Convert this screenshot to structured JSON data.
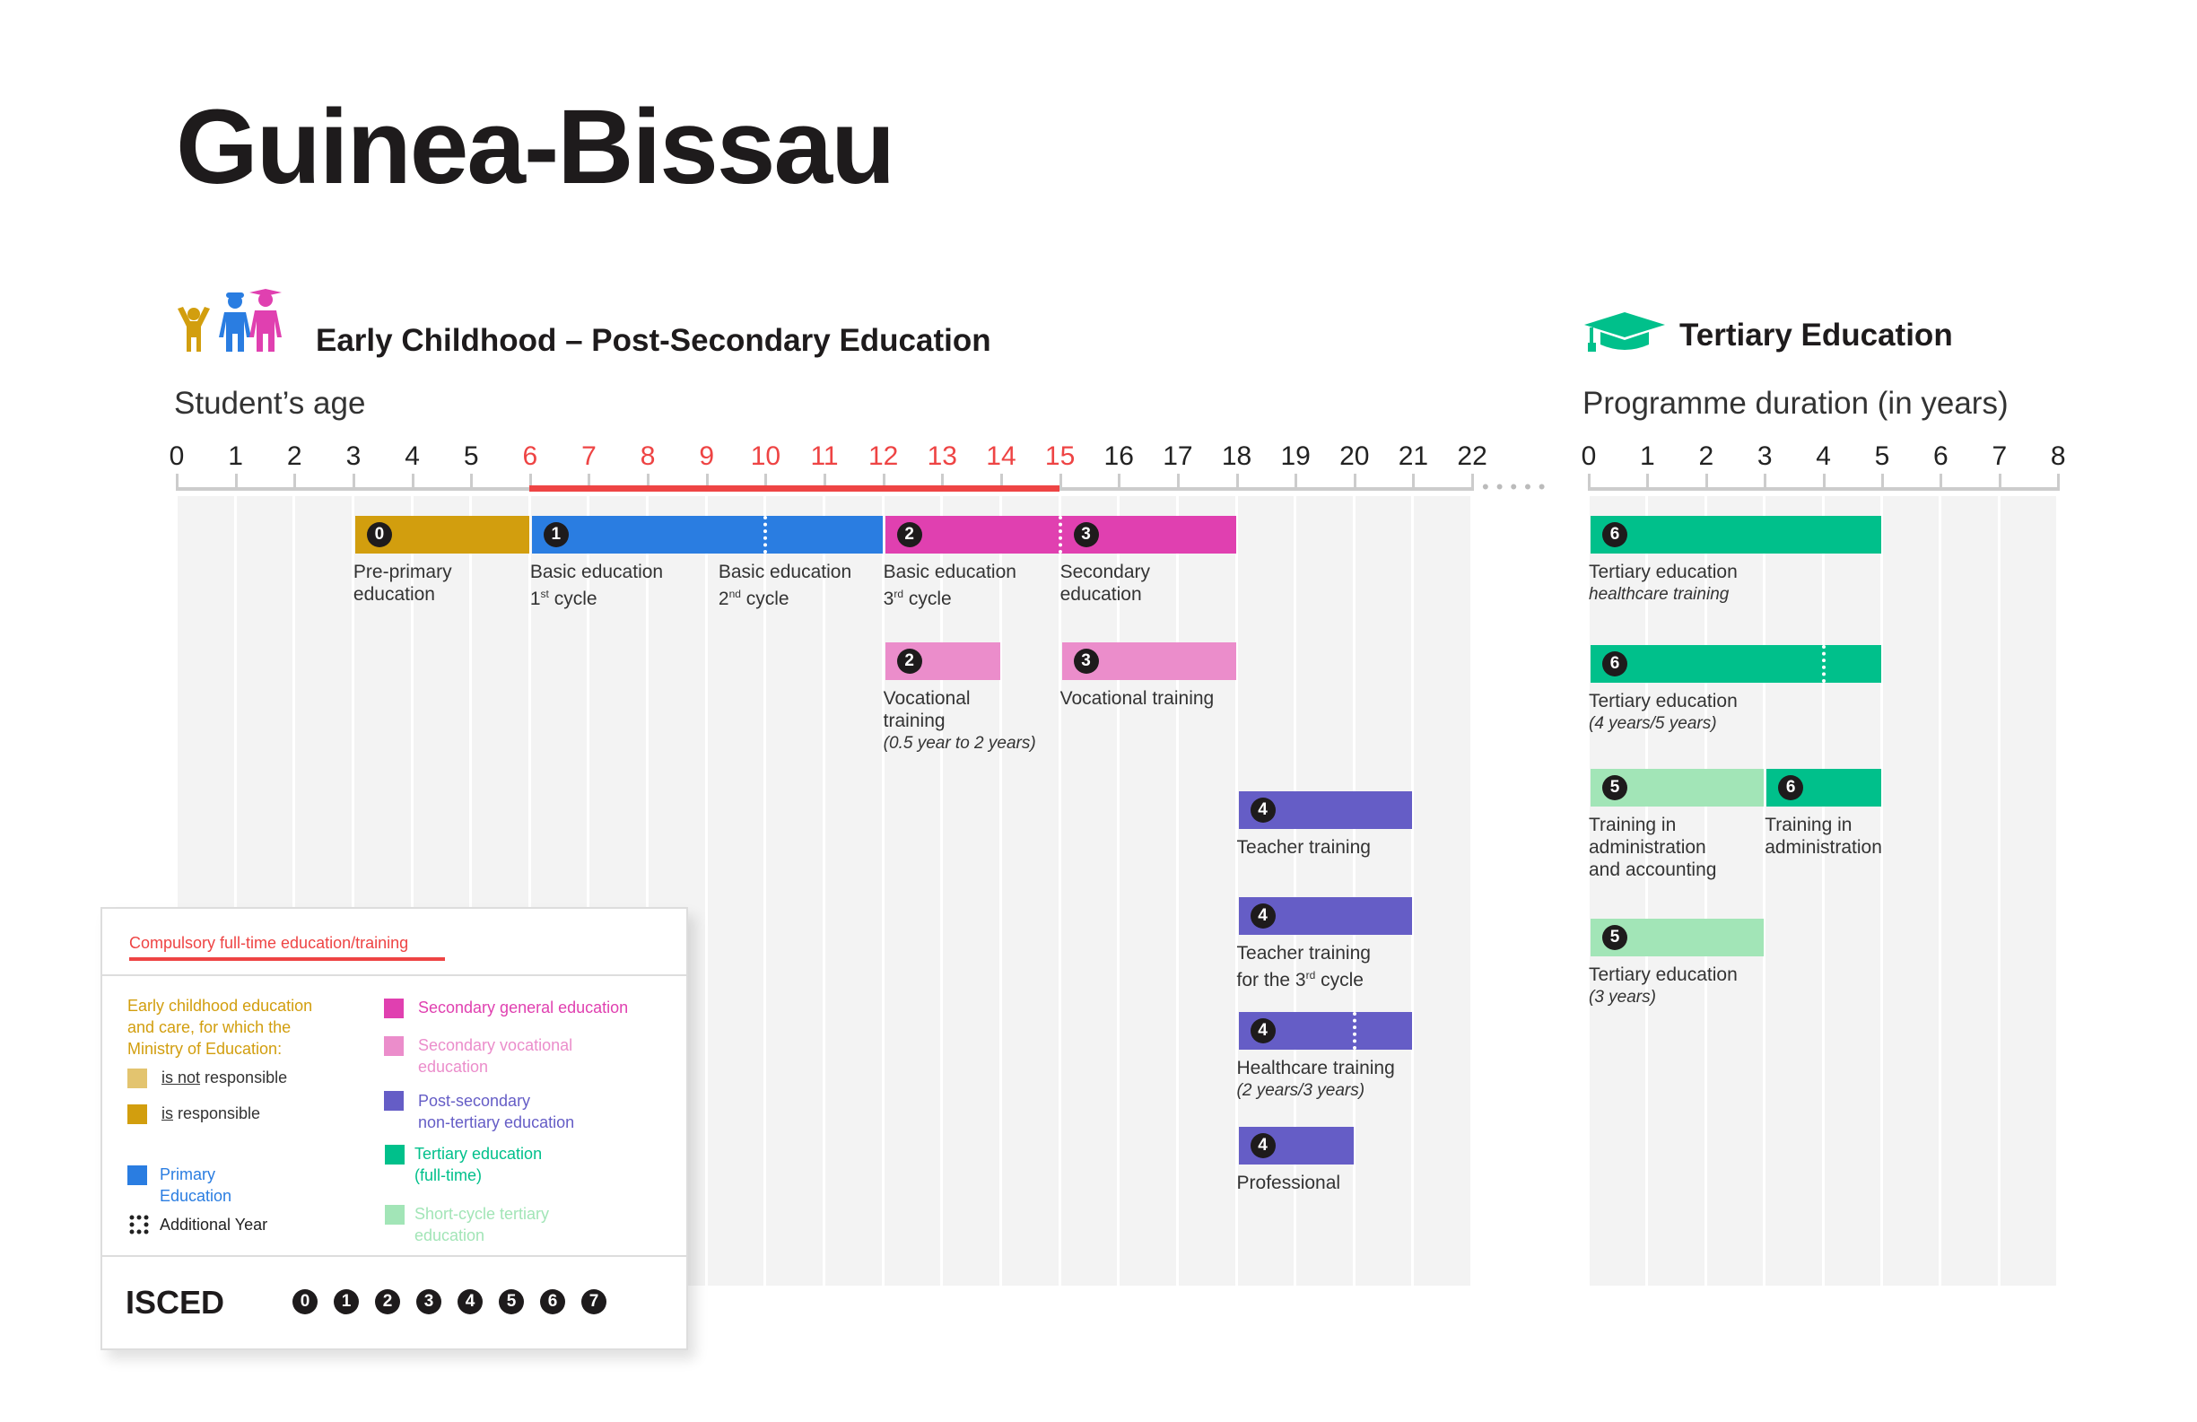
{
  "title": "Guinea-Bissau",
  "sections": {
    "left_title": "Early Childhood – Post-Secondary Education",
    "left_axis_title": "Student’s age",
    "right_title": "Tertiary Education",
    "right_axis_title": "Programme duration (in years)"
  },
  "colors": {
    "preprimary": "#D29E0E",
    "preprimary_not": "#E3C46F",
    "primary": "#2A7DE1",
    "secondary_general": "#E040B0",
    "secondary_vocational": "#EB8DCB",
    "postsecondary": "#655DC6",
    "tertiary": "#00C08B",
    "short_cycle": "#A2E5B7",
    "compulsory": "#EE4444"
  },
  "chart_data": {
    "type": "table",
    "age_axis": {
      "min": 0,
      "max": 22,
      "ticks": [
        "0",
        "1",
        "2",
        "3",
        "4",
        "5",
        "6",
        "7",
        "8",
        "9",
        "10",
        "11",
        "12",
        "13",
        "14",
        "15",
        "16",
        "17",
        "18",
        "19",
        "20",
        "21",
        "22"
      ],
      "compulsory": [
        6,
        15
      ]
    },
    "duration_axis": {
      "min": 0,
      "max": 8,
      "ticks": [
        "0",
        "1",
        "2",
        "3",
        "4",
        "5",
        "6",
        "7",
        "8"
      ]
    },
    "age_bars": [
      {
        "start": 3,
        "end": 6,
        "color": "preprimary",
        "badges": [
          {
            "at": 3,
            "level": "0"
          }
        ],
        "labels": [
          {
            "at": 3,
            "lines": [
              {
                "t": "Pre-primary"
              },
              {
                "t": "education"
              }
            ]
          }
        ]
      },
      {
        "start": 6,
        "end": 12,
        "color": "primary",
        "dotted_at": 10,
        "badges": [
          {
            "at": 6,
            "level": "1"
          }
        ],
        "labels": [
          {
            "at": 6,
            "lines": [
              {
                "t": "Basic education"
              },
              {
                "t": "1",
                "sup": "st",
                "post": " cycle"
              }
            ]
          },
          {
            "at": 9.2,
            "lines": [
              {
                "t": "Basic education"
              },
              {
                "t": "2",
                "sup": "nd",
                "post": " cycle"
              }
            ]
          }
        ]
      },
      {
        "start": 12,
        "end": 18,
        "color": "secondary_general",
        "dotted_at": 15,
        "badges": [
          {
            "at": 12,
            "level": "2"
          },
          {
            "at": 15,
            "level": "3"
          }
        ],
        "labels": [
          {
            "at": 12,
            "lines": [
              {
                "t": "Basic education"
              },
              {
                "t": "3",
                "sup": "rd",
                "post": " cycle"
              }
            ]
          },
          {
            "at": 15,
            "lines": [
              {
                "t": "Secondary"
              },
              {
                "t": "education"
              }
            ]
          }
        ]
      },
      {
        "start": 12,
        "end": 14,
        "color": "secondary_vocational",
        "badges": [
          {
            "at": 12,
            "level": "2"
          }
        ],
        "labels": [
          {
            "at": 12,
            "lines": [
              {
                "t": "Vocational"
              },
              {
                "t": "training"
              },
              {
                "t": "(0.5 year to 2 years)",
                "italic": true
              }
            ]
          }
        ]
      },
      {
        "start": 15,
        "end": 18,
        "color": "secondary_vocational",
        "badges": [
          {
            "at": 15,
            "level": "3"
          }
        ],
        "labels": [
          {
            "at": 15,
            "lines": [
              {
                "t": "Vocational training"
              }
            ]
          }
        ]
      },
      {
        "start": 18,
        "end": 21,
        "color": "postsecondary",
        "badges": [
          {
            "at": 18,
            "level": "4"
          }
        ],
        "labels": [
          {
            "at": 18,
            "lines": [
              {
                "t": "Teacher training"
              }
            ]
          }
        ]
      },
      {
        "start": 18,
        "end": 21,
        "color": "postsecondary",
        "badges": [
          {
            "at": 18,
            "level": "4"
          }
        ],
        "labels": [
          {
            "at": 18,
            "lines": [
              {
                "t": "Teacher training"
              },
              {
                "t": "for the 3",
                "sup": "rd",
                "post": " cycle"
              }
            ]
          }
        ]
      },
      {
        "start": 18,
        "end": 21,
        "color": "postsecondary",
        "dotted_at": 20,
        "badges": [
          {
            "at": 18,
            "level": "4"
          }
        ],
        "labels": [
          {
            "at": 18,
            "lines": [
              {
                "t": "Healthcare training"
              },
              {
                "t": "(2 years/3 years)",
                "italic": true
              }
            ]
          }
        ]
      },
      {
        "start": 18,
        "end": 20,
        "color": "postsecondary",
        "badges": [
          {
            "at": 18,
            "level": "4"
          }
        ],
        "labels": [
          {
            "at": 18,
            "lines": [
              {
                "t": "Professional"
              }
            ]
          }
        ]
      }
    ],
    "duration_bars": [
      {
        "start": 0,
        "end": 5,
        "color": "tertiary",
        "badges": [
          {
            "at": 0,
            "level": "6"
          }
        ],
        "labels": [
          {
            "at": 0,
            "lines": [
              {
                "t": "Tertiary education"
              },
              {
                "t": "healthcare training",
                "italic": true
              }
            ]
          }
        ]
      },
      {
        "start": 0,
        "end": 5,
        "color": "tertiary",
        "dotted_at": 4,
        "badges": [
          {
            "at": 0,
            "level": "6"
          }
        ],
        "labels": [
          {
            "at": 0,
            "lines": [
              {
                "t": "Tertiary education"
              },
              {
                "t": "(4 years/5 years)",
                "italic": true
              }
            ]
          }
        ]
      },
      {
        "start": 0,
        "end": 3,
        "color": "short_cycle",
        "badges": [
          {
            "at": 0,
            "level": "5"
          }
        ],
        "labels": [
          {
            "at": 0,
            "lines": [
              {
                "t": "Training in"
              },
              {
                "t": "administration"
              },
              {
                "t": "and accounting"
              }
            ]
          }
        ]
      },
      {
        "start": 3,
        "end": 5,
        "color": "tertiary",
        "badges": [
          {
            "at": 3,
            "level": "6"
          }
        ],
        "labels": [
          {
            "at": 3,
            "lines": [
              {
                "t": "Training in"
              },
              {
                "t": "administration"
              }
            ]
          }
        ]
      },
      {
        "start": 0,
        "end": 3,
        "color": "short_cycle",
        "badges": [
          {
            "at": 0,
            "level": "5"
          }
        ],
        "labels": [
          {
            "at": 0,
            "lines": [
              {
                "t": "Tertiary education"
              },
              {
                "t": "(3 years)",
                "italic": true
              }
            ]
          }
        ]
      }
    ]
  },
  "legend": {
    "compulsory": "Compulsory full-time education/training",
    "ecec_lines": [
      "Early childhood education",
      "and care, for which the",
      "Ministry of Education:"
    ],
    "not_responsible_u": "is not",
    "not_responsible_rest": " responsible",
    "responsible_u": "is",
    "responsible_rest": " responsible",
    "primary": [
      "Primary",
      "Education"
    ],
    "additional_year": "Additional Year",
    "secondary_general": "Secondary general education",
    "secondary_vocational": [
      "Secondary vocational",
      "education"
    ],
    "postsecondary": [
      "Post-secondary",
      "non-tertiary education"
    ],
    "tertiary": [
      "Tertiary education",
      "(full-time)"
    ],
    "short_cycle": [
      "Short-cycle tertiary",
      "education"
    ],
    "isced_label": "ISCED",
    "isced_levels": [
      "0",
      "1",
      "2",
      "3",
      "4",
      "5",
      "6",
      "7"
    ]
  }
}
